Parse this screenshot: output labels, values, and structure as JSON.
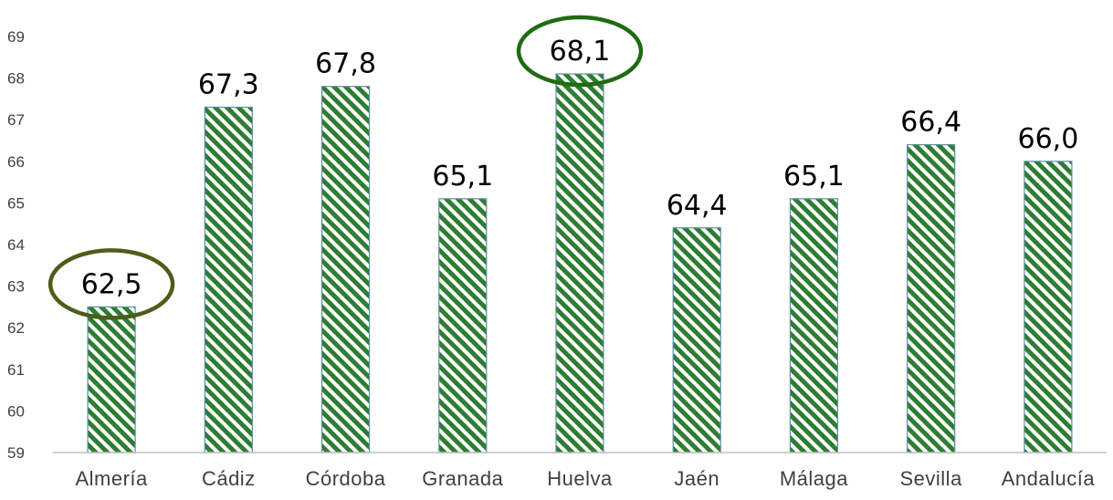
{
  "chart_data": {
    "type": "bar",
    "title": "",
    "xlabel": "",
    "ylabel": "",
    "categories": [
      "Almería",
      "Cádiz",
      "Córdoba",
      "Granada",
      "Huelva",
      "Jaén",
      "Málaga",
      "Sevilla",
      "Andalucía"
    ],
    "values": [
      62.5,
      67.3,
      67.8,
      65.1,
      68.1,
      64.4,
      65.1,
      66.4,
      66.0
    ],
    "value_labels": [
      "62,5",
      "67,3",
      "67,8",
      "65,1",
      "68,1",
      "64,4",
      "65,1",
      "66,4",
      "66,0"
    ],
    "ylim": [
      59,
      69
    ],
    "yticks": [
      "59",
      "60",
      "61",
      "62",
      "63",
      "64",
      "65",
      "66",
      "67",
      "68",
      "69"
    ],
    "highlighted": [
      "Almería",
      "Huelva"
    ],
    "grid": false,
    "legend": "none",
    "colors": {
      "bar_stripe": "#2e7d32",
      "bar_outline": "#5b8ea6",
      "highlight_ellipse": "#4b5e1a",
      "highlight_ellipse_alt": "#1f6b12",
      "axis": "#bfbfbf"
    }
  }
}
